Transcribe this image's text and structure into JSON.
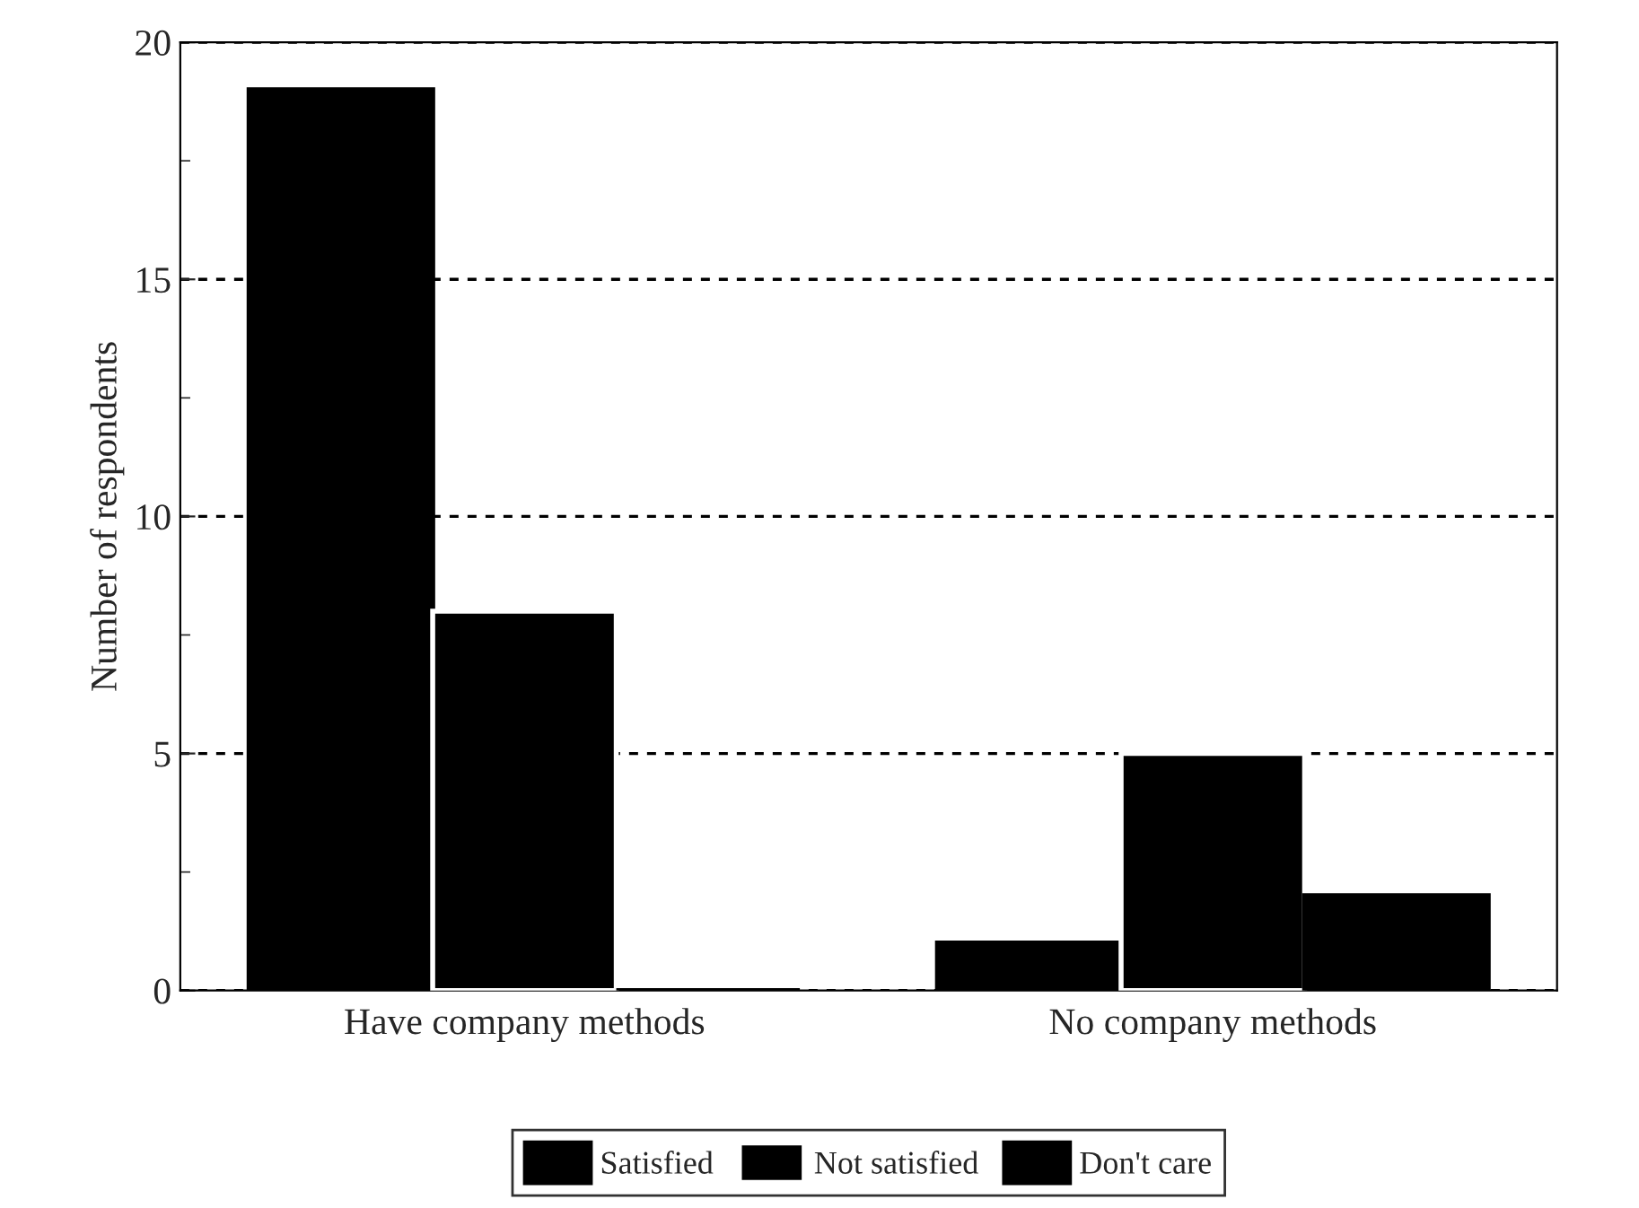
{
  "chart_data": {
    "type": "bar",
    "ylabel": "Number of respondents",
    "categories": [
      "Have company methods",
      "No company methods"
    ],
    "series": [
      {
        "name": "Satisfied",
        "color": "#000000",
        "values": [
          19,
          1
        ]
      },
      {
        "name": "Not satisfied",
        "color": "#000000",
        "values": [
          8,
          5
        ]
      },
      {
        "name": "Don't care",
        "color": "#000000",
        "values": [
          0,
          2
        ]
      }
    ],
    "ylim": [
      0,
      20
    ],
    "yticks": [
      0,
      {
        "value": 2.5,
        "label": null
      },
      5,
      {
        "value": 7.5,
        "label": null
      },
      10,
      {
        "value": 12.5,
        "label": null
      },
      15,
      {
        "value": 17.5,
        "label": null
      },
      20
    ],
    "grid": "y",
    "legend": "bottom"
  }
}
